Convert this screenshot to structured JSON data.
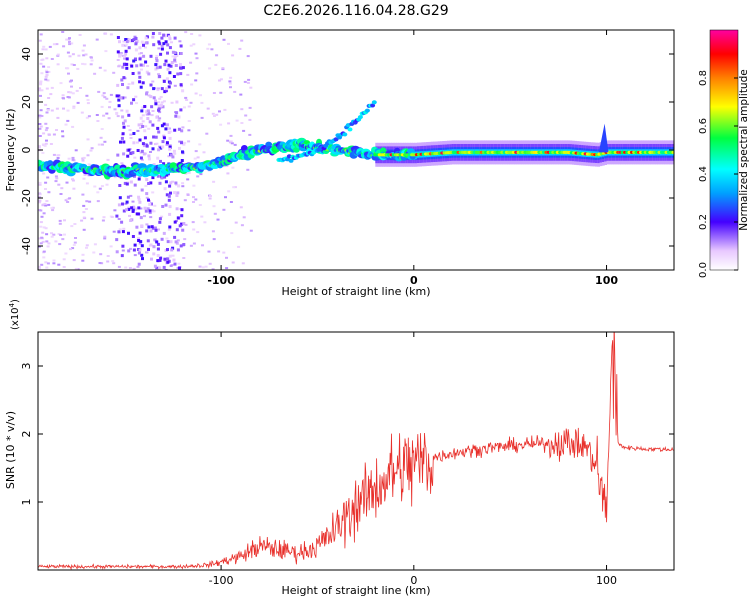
{
  "chart_data": [
    {
      "type": "heatmap",
      "title": "C2E6.2026.116.04.28.G29",
      "xlabel": "Height of straight line (km)",
      "ylabel": "Frequency (Hz)",
      "xlim": [
        -195,
        135
      ],
      "ylim": [
        -50,
        50
      ],
      "xticks": [
        -100,
        0,
        100
      ],
      "yticks": [
        -40,
        -20,
        0,
        20,
        40
      ],
      "colorbar": {
        "label": "Normalized spectral amplitude",
        "range": [
          0,
          1
        ],
        "ticks": [
          0.0,
          0.2,
          0.4,
          0.6,
          0.8
        ]
      },
      "ridge": {
        "description": "dominant frequency track",
        "x": [
          -195,
          -170,
          -150,
          -130,
          -110,
          -100,
          -90,
          -80,
          -70,
          -60,
          -50,
          -40,
          -30,
          -20,
          -10,
          0,
          20,
          40,
          60,
          80,
          95,
          100,
          135
        ],
        "y": [
          -7,
          -8,
          -9,
          -8,
          -7,
          -5,
          -2,
          0,
          1,
          2,
          1,
          0,
          -1,
          -2,
          -2,
          -2,
          -1,
          -1,
          -1,
          -1,
          -2,
          -1,
          -1
        ]
      },
      "secondary_track": {
        "x": [
          -70,
          -60,
          -50,
          -40,
          -30,
          -20
        ],
        "y": [
          -4,
          -3,
          0,
          5,
          12,
          20
        ]
      },
      "noisy_band_x": [
        -155,
        -120
      ]
    },
    {
      "type": "line",
      "title": "",
      "xlabel": "Height of straight line (km)",
      "ylabel": "SNR (10 * v/v)",
      "scale_label": "(x10",
      "scale_exp": "4",
      "scale_close": ")",
      "xlim": [
        -195,
        135
      ],
      "ylim": [
        0,
        3.5
      ],
      "xticks": [
        -100,
        0,
        100
      ],
      "yticks": [
        1,
        2,
        3
      ],
      "color": "#e8302b",
      "envelope": {
        "x": [
          -195,
          -120,
          -105,
          -90,
          -80,
          -70,
          -60,
          -50,
          -40,
          -30,
          -20,
          -10,
          0,
          10,
          20,
          40,
          60,
          80,
          90,
          95,
          100,
          103,
          106,
          110,
          120,
          135
        ],
        "y": [
          0.05,
          0.05,
          0.08,
          0.2,
          0.35,
          0.3,
          0.25,
          0.35,
          0.6,
          0.95,
          1.2,
          1.45,
          1.55,
          1.65,
          1.72,
          1.8,
          1.85,
          1.88,
          1.8,
          1.5,
          0.8,
          3.3,
          1.85,
          1.8,
          1.78,
          1.77
        ]
      }
    }
  ]
}
